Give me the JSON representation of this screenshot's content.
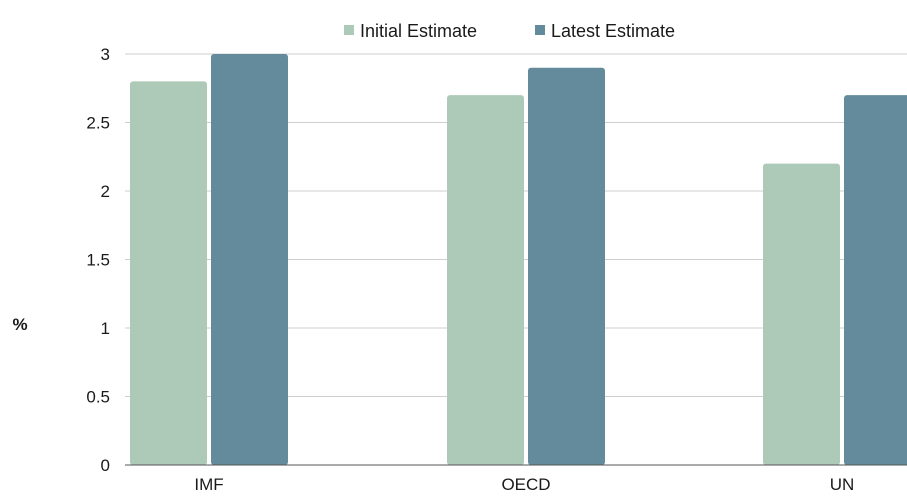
{
  "chart_data": {
    "type": "bar",
    "categories": [
      "IMF",
      "OECD",
      "UN"
    ],
    "series": [
      {
        "name": "Initial Estimate",
        "values": [
          2.8,
          2.7,
          2.2
        ],
        "color": "#adc9b8"
      },
      {
        "name": "Latest Estimate",
        "values": [
          3.0,
          2.9,
          2.7
        ],
        "color": "#648b9c"
      }
    ],
    "ylabel": "%",
    "ylim": [
      0,
      3
    ],
    "yticks": [
      "0",
      "0.5",
      "1",
      "1.5",
      "2",
      "2.5",
      "3"
    ],
    "grid": true,
    "legend_position": "top-center"
  }
}
